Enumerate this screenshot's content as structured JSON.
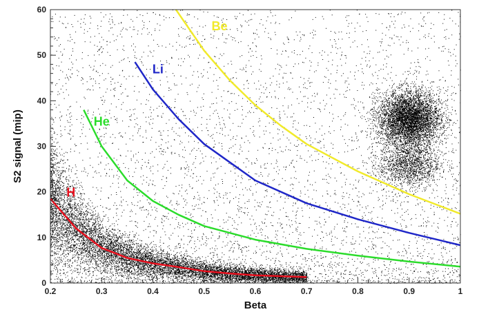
{
  "chart_data": {
    "type": "scatter",
    "title": "",
    "xlabel": "Beta",
    "ylabel": "S2 signal (mip)",
    "xlim": [
      0.2,
      1.0
    ],
    "ylim": [
      0,
      60
    ],
    "x_ticks": [
      "0.2",
      "0.3",
      "0.4",
      "0.5",
      "0.6",
      "0.7",
      "0.8",
      "0.9",
      "1"
    ],
    "y_ticks": [
      "0",
      "10",
      "20",
      "30",
      "40",
      "50",
      "60"
    ],
    "grid": false,
    "point_color": "#000000",
    "point_clusters": [
      {
        "description_id": "light-band",
        "x_range": [
          0.2,
          0.7
        ],
        "shape": "decaying",
        "density": "high"
      },
      {
        "description_id": "blob",
        "x_center": 0.9,
        "y_center": 36,
        "x_spread": 0.03,
        "y_spread": 3,
        "density": "high"
      },
      {
        "description_id": "sub-blob",
        "x_center": 0.9,
        "y_center": 26,
        "x_spread": 0.03,
        "y_spread": 2.5,
        "density": "medium"
      },
      {
        "description_id": "background",
        "x_range": [
          0.2,
          1.0
        ],
        "y_range": [
          0,
          60
        ],
        "density": "low"
      }
    ],
    "series": [
      {
        "name": "H",
        "color": "#e8101e",
        "x_start": 0.2,
        "x_end": 0.7,
        "points": [
          [
            0.2,
            18.5
          ],
          [
            0.25,
            12
          ],
          [
            0.3,
            7.7
          ],
          [
            0.35,
            5.5
          ],
          [
            0.4,
            4.3
          ],
          [
            0.45,
            3.5
          ],
          [
            0.5,
            2.6
          ],
          [
            0.55,
            2.1
          ],
          [
            0.6,
            1.7
          ],
          [
            0.65,
            1.5
          ],
          [
            0.7,
            1.3
          ]
        ]
      },
      {
        "name": "He",
        "color": "#2bdc2b",
        "x_start": 0.265,
        "x_end": 1.0,
        "points": [
          [
            0.265,
            38
          ],
          [
            0.3,
            30
          ],
          [
            0.35,
            22.5
          ],
          [
            0.4,
            18
          ],
          [
            0.45,
            15
          ],
          [
            0.5,
            12.5
          ],
          [
            0.6,
            9.5
          ],
          [
            0.7,
            7.5
          ],
          [
            0.8,
            6
          ],
          [
            0.9,
            4.7
          ],
          [
            1.0,
            3.6
          ]
        ]
      },
      {
        "name": "Li",
        "color": "#1f27c8",
        "x_start": 0.365,
        "x_end": 1.0,
        "points": [
          [
            0.365,
            48.5
          ],
          [
            0.4,
            42.5
          ],
          [
            0.45,
            36
          ],
          [
            0.5,
            30.5
          ],
          [
            0.55,
            26.5
          ],
          [
            0.6,
            22.5
          ],
          [
            0.7,
            17.5
          ],
          [
            0.8,
            14
          ],
          [
            0.9,
            11
          ],
          [
            1.0,
            8.3
          ]
        ]
      },
      {
        "name": "Be",
        "color": "#f1ea2b",
        "x_start": 0.445,
        "x_end": 1.0,
        "points": [
          [
            0.445,
            60
          ],
          [
            0.5,
            51
          ],
          [
            0.55,
            44.5
          ],
          [
            0.6,
            39
          ],
          [
            0.65,
            34.5
          ],
          [
            0.7,
            30.5
          ],
          [
            0.8,
            24.5
          ],
          [
            0.9,
            19.5
          ],
          [
            1.0,
            15.2
          ]
        ]
      }
    ],
    "annotations": [
      {
        "text": "H",
        "x": 0.24,
        "y": 19,
        "color": "#e8101e"
      },
      {
        "text": "He",
        "x": 0.3,
        "y": 34.5,
        "color": "#2bdc2b"
      },
      {
        "text": "Li",
        "x": 0.41,
        "y": 46,
        "color": "#1f27c8"
      },
      {
        "text": "Be",
        "x": 0.53,
        "y": 55.5,
        "color": "#f1ea2b"
      }
    ]
  }
}
